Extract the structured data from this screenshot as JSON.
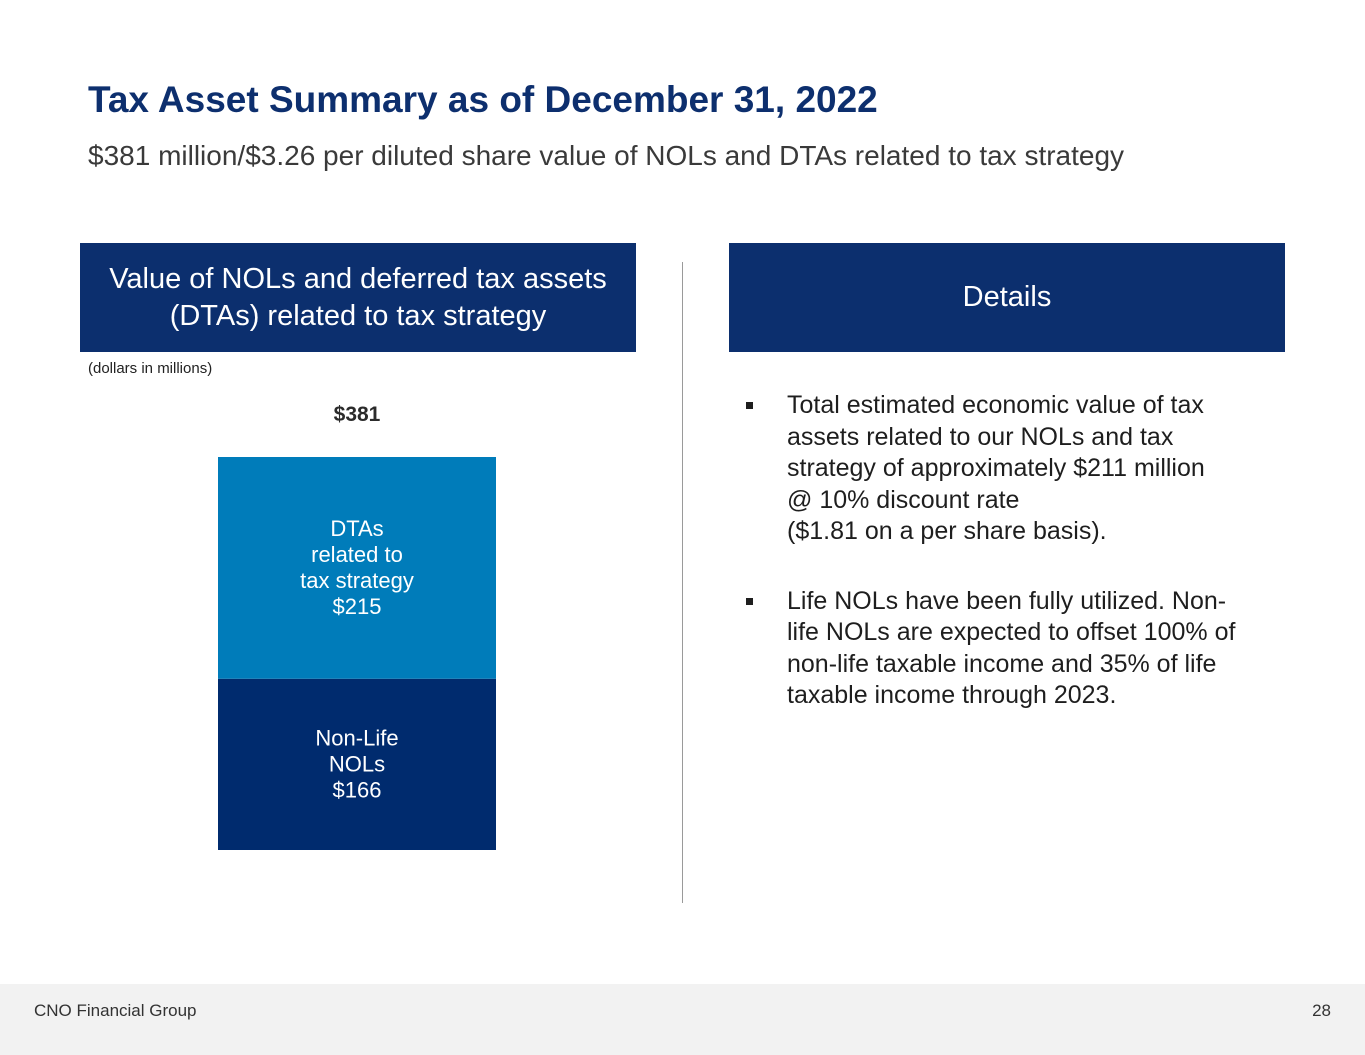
{
  "slide": {
    "title": "Tax Asset Summary as of December 31, 2022",
    "subtitle": "$381 million/$3.26 per diluted share value of NOLs and DTAs related to tax strategy"
  },
  "left_panel": {
    "header_line1": "Value of NOLs and deferred tax assets",
    "header_line2": "(DTAs) related to tax strategy",
    "units_note": "(dollars in millions)"
  },
  "right_panel": {
    "header": "Details",
    "bullets": [
      {
        "lines": [
          "Total estimated economic value of tax",
          "assets related to our NOLs and tax",
          "strategy of approximately $211 million",
          "@ 10% discount rate",
          "($1.81 on a per share basis)."
        ]
      },
      {
        "lines": [
          "Life NOLs have been fully utilized. Non-",
          "life NOLs are expected to offset 100% of",
          "non-life taxable income and 35% of life",
          "taxable income through 2023."
        ]
      }
    ]
  },
  "chart_data": {
    "type": "bar",
    "stacked": true,
    "title": "Value of NOLs and deferred tax assets (DTAs) related to tax strategy",
    "units": "dollars in millions",
    "total": 381,
    "total_label": "$381",
    "series": [
      {
        "name": "Non-Life NOLs",
        "value": 166,
        "label_lines": [
          "Non-Life",
          "NOLs",
          "$166"
        ],
        "color": "#002b6e"
      },
      {
        "name": "DTAs related to tax strategy",
        "value": 215,
        "label_lines": [
          "DTAs",
          "related to",
          "tax strategy",
          "$215"
        ],
        "color": "#007cba"
      }
    ]
  },
  "footer": {
    "company": "CNO Financial Group",
    "page_number": "28"
  }
}
